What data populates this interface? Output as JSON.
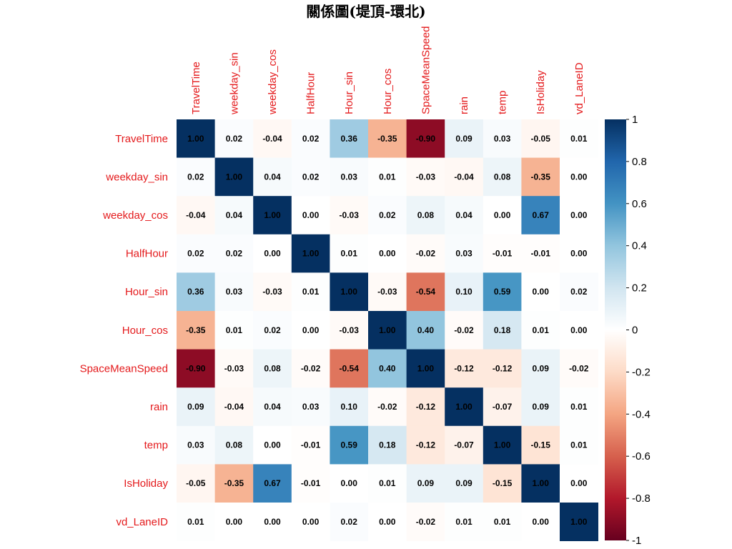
{
  "chart_data": {
    "type": "heatmap",
    "title": "關係圖(堤頂-環北)",
    "variables": [
      "TravelTime",
      "weekday_sin",
      "weekday_cos",
      "HalfHour",
      "Hour_sin",
      "Hour_cos",
      "SpaceMeanSpeed",
      "rain",
      "temp",
      "IsHoliday",
      "vd_LaneID"
    ],
    "matrix": [
      [
        1.0,
        0.02,
        -0.04,
        0.02,
        0.36,
        -0.35,
        -0.9,
        0.09,
        0.03,
        -0.05,
        0.01
      ],
      [
        0.02,
        1.0,
        0.04,
        0.02,
        0.03,
        0.01,
        -0.03,
        -0.04,
        0.08,
        -0.35,
        0.0
      ],
      [
        -0.04,
        0.04,
        1.0,
        0.0,
        -0.03,
        0.02,
        0.08,
        0.04,
        0.0,
        0.67,
        0.0
      ],
      [
        0.02,
        0.02,
        0.0,
        1.0,
        0.01,
        0.0,
        -0.02,
        0.03,
        -0.01,
        -0.01,
        0.0
      ],
      [
        0.36,
        0.03,
        -0.03,
        0.01,
        1.0,
        -0.03,
        -0.54,
        0.1,
        0.59,
        0.0,
        0.02
      ],
      [
        -0.35,
        0.01,
        0.02,
        0.0,
        -0.03,
        1.0,
        0.4,
        -0.02,
        0.18,
        0.01,
        0.0
      ],
      [
        -0.9,
        -0.03,
        0.08,
        -0.02,
        -0.54,
        0.4,
        1.0,
        -0.12,
        -0.12,
        0.09,
        -0.02
      ],
      [
        0.09,
        -0.04,
        0.04,
        0.03,
        0.1,
        -0.02,
        -0.12,
        1.0,
        -0.07,
        0.09,
        0.01
      ],
      [
        0.03,
        0.08,
        0.0,
        -0.01,
        0.59,
        0.18,
        -0.12,
        -0.07,
        1.0,
        -0.15,
        0.01
      ],
      [
        -0.05,
        -0.35,
        0.67,
        -0.01,
        0.0,
        0.01,
        0.09,
        0.09,
        -0.15,
        1.0,
        0.0
      ],
      [
        0.01,
        0.0,
        0.0,
        0.0,
        0.02,
        0.0,
        -0.02,
        0.01,
        0.01,
        0.0,
        1.0
      ]
    ],
    "colorbar": {
      "range": [
        -1,
        1
      ],
      "ticks": [
        "1",
        "0.8",
        "0.6",
        "0.4",
        "0.2",
        "0",
        "-0.2",
        "-0.4",
        "-0.6",
        "-0.8",
        "-1"
      ],
      "colors": [
        "#67001f",
        "#b2182b",
        "#d6604d",
        "#f4a582",
        "#fddbc7",
        "#ffffff",
        "#d1e5f0",
        "#92c5de",
        "#4393c3",
        "#2166ac",
        "#053061"
      ]
    },
    "label_color": "#e41a1c"
  }
}
